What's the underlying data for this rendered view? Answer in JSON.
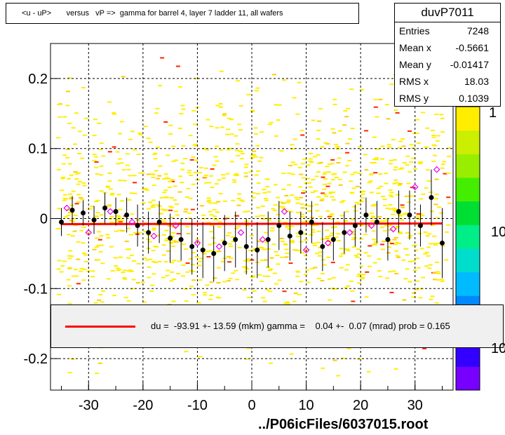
{
  "chart_data": {
    "type": "scatter",
    "title": "<u - uP>       versus   vP =>  gamma for barrel 4, layer 7 ladder 11, all wafers",
    "xlabel": "",
    "ylabel": "",
    "xlim": [
      -37,
      37
    ],
    "ylim": [
      -0.245,
      0.25
    ],
    "x_ticks": [
      -30,
      -20,
      -10,
      0,
      10,
      20,
      30
    ],
    "x_tick_labels": [
      "-30",
      "-20",
      "-10",
      "0",
      "10",
      "20",
      "30"
    ],
    "y_ticks": [
      -0.2,
      -0.1,
      0,
      0.1,
      0.2
    ],
    "y_tick_labels": [
      "-0.2",
      "-0.1",
      "0",
      "0.1",
      "0.2"
    ],
    "grid": true,
    "fit_line": {
      "x": [
        -35,
        35
      ],
      "y": [
        -0.008,
        -0.007
      ],
      "color": "#ff0000"
    },
    "series": [
      {
        "marker": "filled-circle",
        "color": "#000000",
        "x": [
          -35,
          -33,
          -31,
          -29,
          -27,
          -25,
          -23,
          -21,
          -19,
          -17,
          -15,
          -13,
          -11,
          -9,
          -7,
          -5,
          -3,
          -1,
          1,
          3,
          5,
          7,
          9,
          11,
          13,
          15,
          17,
          19,
          21,
          23,
          25,
          27,
          29,
          31,
          33,
          35
        ],
        "y": [
          -0.005,
          0.012,
          0.008,
          -0.002,
          0.015,
          0.01,
          0.005,
          -0.01,
          -0.02,
          -0.005,
          -0.028,
          -0.03,
          -0.04,
          -0.045,
          -0.05,
          -0.035,
          -0.03,
          -0.04,
          -0.045,
          -0.03,
          -0.01,
          -0.025,
          -0.02,
          -0.005,
          -0.04,
          -0.03,
          -0.02,
          -0.01,
          0.005,
          -0.005,
          -0.03,
          0.01,
          0.005,
          -0.01,
          0.03,
          -0.035
        ],
        "err": [
          0.02,
          0.02,
          0.018,
          0.02,
          0.022,
          0.02,
          0.025,
          0.03,
          0.03,
          0.03,
          0.035,
          0.03,
          0.04,
          0.04,
          0.04,
          0.04,
          0.04,
          0.04,
          0.04,
          0.04,
          0.035,
          0.035,
          0.03,
          0.03,
          0.035,
          0.03,
          0.03,
          0.03,
          0.025,
          0.03,
          0.03,
          0.03,
          0.035,
          0.03,
          0.04,
          0.05
        ]
      },
      {
        "marker": "open-diamond",
        "color": "#ee00ee",
        "x": [
          -34,
          -30,
          -26,
          -22,
          -18,
          -14,
          -10,
          -6,
          -2,
          2,
          6,
          10,
          14,
          18,
          22,
          26,
          30,
          34
        ],
        "y": [
          0.015,
          -0.02,
          0.01,
          -0.005,
          -0.025,
          -0.01,
          -0.035,
          -0.04,
          -0.02,
          -0.03,
          0.01,
          -0.045,
          -0.035,
          -0.02,
          -0.01,
          -0.015,
          0.045,
          0.07
        ]
      }
    ],
    "colorbar": {
      "tick_labels": [
        "1",
        "10",
        "10"
      ]
    }
  },
  "stats": {
    "name": "duvP7011",
    "rows": [
      {
        "key": "Entries",
        "value": "7248"
      },
      {
        "key": "Mean x",
        "value": "-0.5661"
      },
      {
        "key": "Mean y",
        "value": "-0.01417"
      },
      {
        "key": "RMS x",
        "value": "18.03"
      },
      {
        "key": "RMS y",
        "value": "0.1039"
      }
    ]
  },
  "legend": {
    "text": "du =  -93.91 +- 13.59 (mkm) gamma =    0.04 +-  0.07 (mrad) prob = 0.165"
  },
  "footer": "../P06icFiles/6037015.root"
}
